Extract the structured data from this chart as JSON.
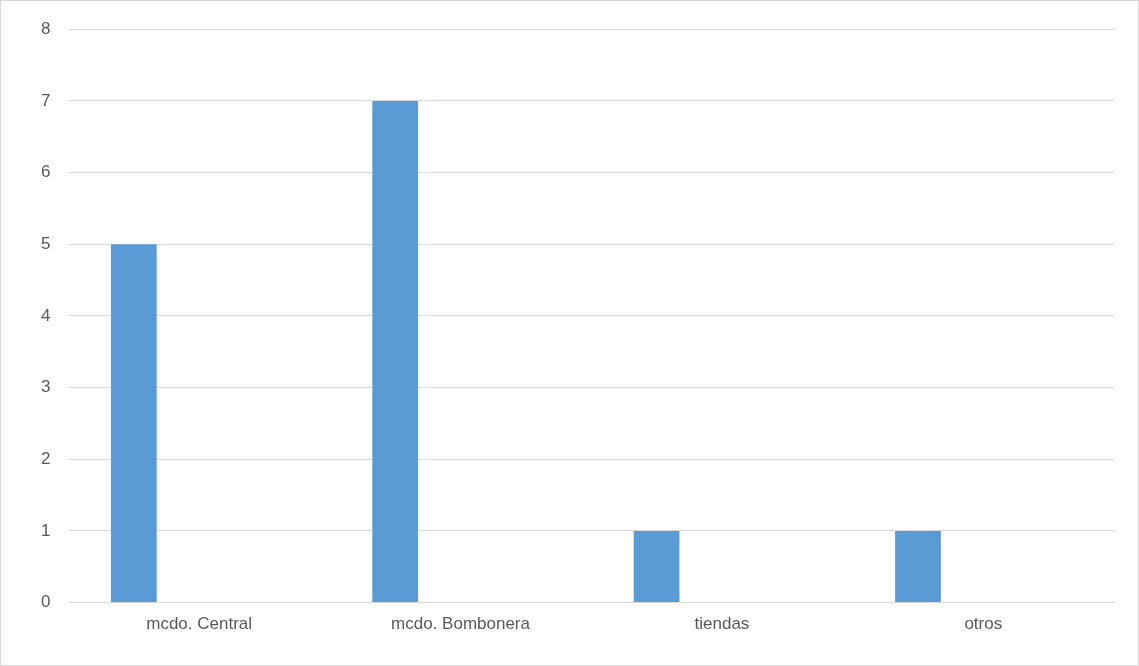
{
  "chart_data": {
    "type": "bar",
    "categories": [
      "mcdo. Central",
      "mcdo. Bombonera",
      "tiendas",
      "otros"
    ],
    "values": [
      5,
      7,
      1,
      1
    ],
    "color": "#5b9bd5",
    "ylim": [
      0,
      8
    ],
    "yticks": [
      0,
      1,
      2,
      3,
      4,
      5,
      6,
      7,
      8
    ],
    "grid": "y",
    "legend": false
  }
}
